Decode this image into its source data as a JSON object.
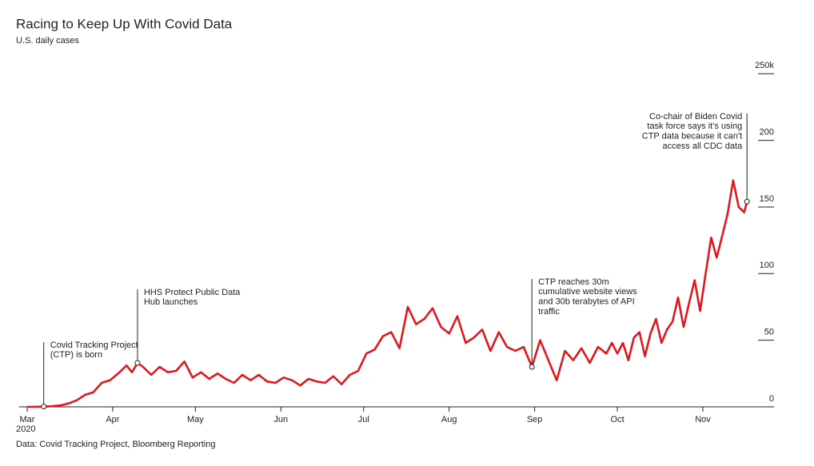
{
  "chart_data": {
    "type": "line",
    "title": "Racing to Keep Up With Covid Data",
    "subtitle": "U.S. daily cases",
    "source": "Data: Covid Tracking Project, Bloomberg Reporting",
    "year_label": "2020",
    "xlim": [
      -3,
      272
    ],
    "xticks": [
      {
        "value": 0,
        "label": "Mar"
      },
      {
        "value": 31,
        "label": "Apr"
      },
      {
        "value": 61,
        "label": "May"
      },
      {
        "value": 92,
        "label": "Jun"
      },
      {
        "value": 122,
        "label": "Jul"
      },
      {
        "value": 153,
        "label": "Aug"
      },
      {
        "value": 184,
        "label": "Sep"
      },
      {
        "value": 214,
        "label": "Oct"
      },
      {
        "value": 245,
        "label": "Nov"
      }
    ],
    "ylim": [
      0,
      250
    ],
    "yticks": [
      0,
      50,
      100,
      150,
      200,
      {
        "value": 250,
        "label": "250k"
      }
    ],
    "series": [
      {
        "name": "U.S. daily cases",
        "color": "#e3161b",
        "x": [
          0,
          3,
          6,
          9,
          12,
          15,
          18,
          21,
          24,
          27,
          30,
          33,
          36,
          38,
          40,
          42,
          45,
          48,
          51,
          54,
          57,
          60,
          63,
          66,
          69,
          72,
          75,
          78,
          81,
          84,
          87,
          90,
          93,
          96,
          99,
          102,
          105,
          108,
          111,
          114,
          117,
          120,
          123,
          126,
          129,
          132,
          135,
          138,
          141,
          144,
          147,
          150,
          153,
          156,
          159,
          162,
          165,
          168,
          171,
          174,
          177,
          180,
          183,
          186,
          189,
          192,
          195,
          198,
          201,
          204,
          207,
          210,
          212,
          214,
          216,
          218,
          220,
          222,
          224,
          226,
          228,
          230,
          232,
          234,
          236,
          238,
          240,
          242,
          244,
          246,
          248,
          250,
          252,
          254,
          256,
          258,
          260,
          261
        ],
        "values": [
          0,
          0,
          0.2,
          0.5,
          1,
          2.5,
          5,
          9,
          11,
          18,
          20,
          25,
          31,
          26,
          33,
          30,
          24,
          30,
          26,
          27,
          34,
          22,
          26,
          21,
          25,
          21,
          18,
          24,
          20,
          24,
          19,
          18,
          22,
          20,
          16,
          21,
          19,
          18,
          23,
          17,
          24,
          27,
          40,
          43,
          53,
          56,
          44,
          75,
          62,
          66,
          74,
          60,
          55,
          68,
          48,
          52,
          58,
          42,
          56,
          45,
          42,
          45,
          30,
          50,
          35,
          20,
          42,
          35,
          44,
          33,
          45,
          40,
          48,
          40,
          48,
          35,
          52,
          56,
          38,
          55,
          66,
          48,
          58,
          64,
          82,
          60,
          78,
          95,
          72,
          100,
          127,
          112,
          128,
          145,
          170,
          150,
          146,
          154
        ]
      }
    ],
    "annotations": [
      {
        "x": 6,
        "y": 0.2,
        "lines": [
          "Covid Tracking Project",
          "(CTP) is born"
        ]
      },
      {
        "x": 40,
        "y": 33,
        "lines": [
          "HHS Protect Public Data",
          "Hub launches"
        ]
      },
      {
        "x": 183,
        "y": 30,
        "lines": [
          "CTP reaches 30m",
          "cumulative website views",
          "and 30b terabytes of API",
          "traffic"
        ]
      },
      {
        "x": 261,
        "y": 154,
        "lines": [
          "Co-chair of Biden Covid",
          "task force says it's using",
          "CTP data because it can't",
          "access all CDC data"
        ]
      }
    ]
  }
}
